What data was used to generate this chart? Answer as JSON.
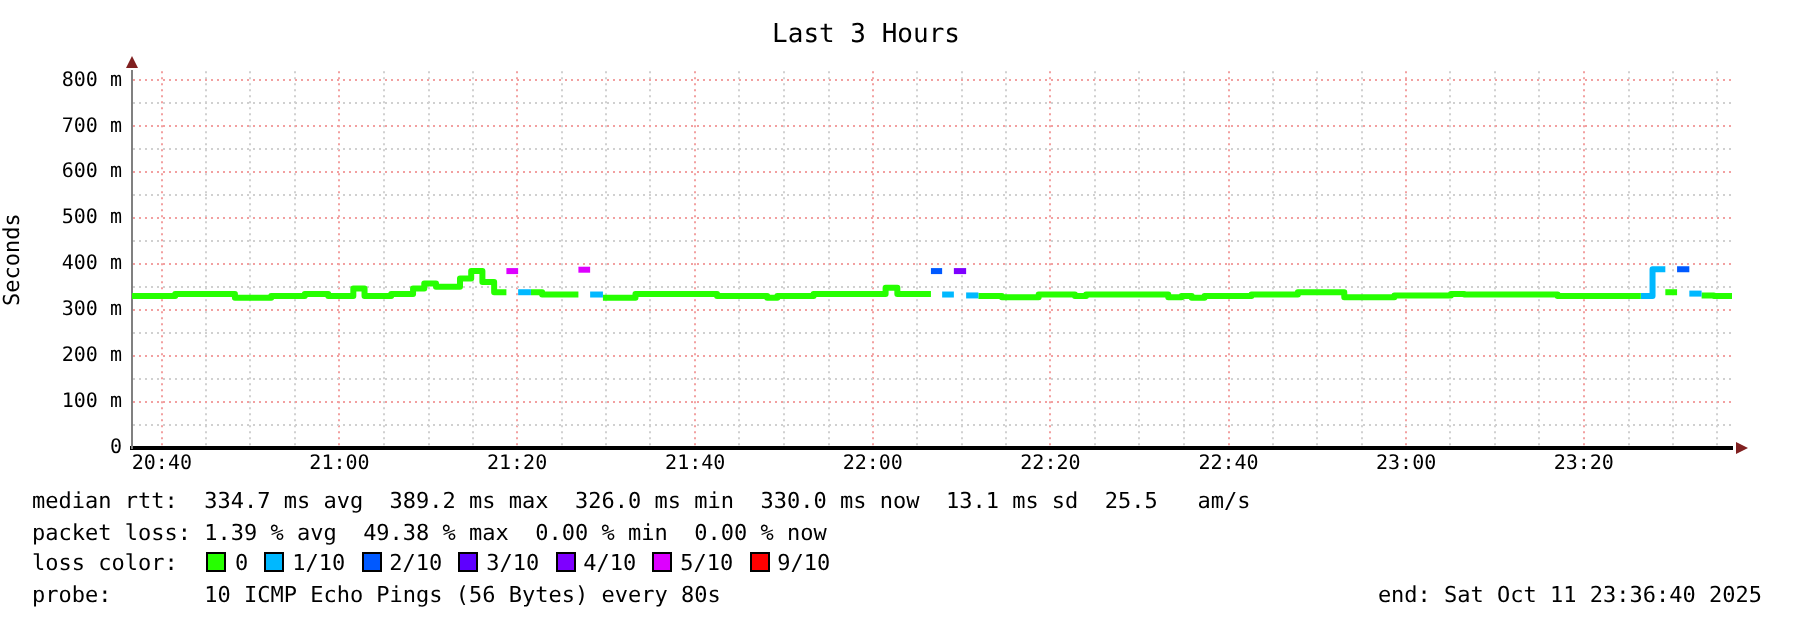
{
  "chart_data": {
    "type": "step",
    "title": "Last 3 Hours",
    "ylabel": "Seconds",
    "xlim": [
      20.611,
      23.611
    ],
    "ylim": [
      0,
      820
    ],
    "xticks": [
      {
        "value": 20.667,
        "label": "20:40"
      },
      {
        "value": 20.75,
        "label": null
      },
      {
        "value": 20.833,
        "label": null
      },
      {
        "value": 20.917,
        "label": null
      },
      {
        "value": 21,
        "label": "21:00"
      },
      {
        "value": 21.083,
        "label": null
      },
      {
        "value": 21.167,
        "label": null
      },
      {
        "value": 21.25,
        "label": null
      },
      {
        "value": 21.333,
        "label": "21:20"
      },
      {
        "value": 21.417,
        "label": null
      },
      {
        "value": 21.5,
        "label": null
      },
      {
        "value": 21.583,
        "label": null
      },
      {
        "value": 21.667,
        "label": "21:40"
      },
      {
        "value": 21.75,
        "label": null
      },
      {
        "value": 21.833,
        "label": null
      },
      {
        "value": 21.917,
        "label": null
      },
      {
        "value": 22,
        "label": "22:00"
      },
      {
        "value": 22.083,
        "label": null
      },
      {
        "value": 22.167,
        "label": null
      },
      {
        "value": 22.25,
        "label": null
      },
      {
        "value": 22.333,
        "label": "22:20"
      },
      {
        "value": 22.417,
        "label": null
      },
      {
        "value": 22.5,
        "label": null
      },
      {
        "value": 22.583,
        "label": null
      },
      {
        "value": 22.667,
        "label": "22:40"
      },
      {
        "value": 22.75,
        "label": null
      },
      {
        "value": 22.833,
        "label": null
      },
      {
        "value": 22.917,
        "label": null
      },
      {
        "value": 23,
        "label": "23:00"
      },
      {
        "value": 23.083,
        "label": null
      },
      {
        "value": 23.167,
        "label": null
      },
      {
        "value": 23.25,
        "label": null
      },
      {
        "value": 23.333,
        "label": "23:20"
      },
      {
        "value": 23.417,
        "label": null
      },
      {
        "value": 23.5,
        "label": null
      },
      {
        "value": 23.583,
        "label": null
      }
    ],
    "yticks": [
      0,
      {
        "value": 50,
        "label": null
      },
      {
        "value": 100,
        "label": "100 m"
      },
      {
        "value": 150,
        "label": null
      },
      {
        "value": 200,
        "label": "200 m"
      },
      {
        "value": 250,
        "label": null
      },
      {
        "value": 300,
        "label": "300 m"
      },
      {
        "value": 350,
        "label": null
      },
      {
        "value": 400,
        "label": "400 m"
      },
      {
        "value": 450,
        "label": null
      },
      {
        "value": 500,
        "label": "500 m"
      },
      {
        "value": 550,
        "label": null
      },
      {
        "value": 600,
        "label": "600 m"
      },
      {
        "value": 650,
        "label": null
      },
      {
        "value": 700,
        "label": "700 m"
      },
      {
        "value": 750,
        "label": null
      },
      {
        "value": 800,
        "label": "800 m"
      }
    ],
    "grid": true,
    "legend": "bottom",
    "legend_title": "loss color:",
    "marker": "none",
    "series": [
      {
        "name": "0",
        "color": "#26ff00",
        "x": [
          20.611,
          20.692,
          20.804,
          20.872,
          20.935,
          20.979,
          21.026,
          21.047,
          21.097,
          21.138,
          21.159,
          21.181,
          21.226,
          21.247,
          21.268,
          21.29,
          21.313
        ],
        "values": [
          331,
          335,
          327,
          331,
          335,
          331,
          347,
          331,
          335,
          347,
          358,
          351,
          369,
          385,
          361,
          339,
          339
        ]
      },
      {
        "name": "1/10",
        "color": "#00b8ff",
        "x": [
          21.335,
          21.359
        ],
        "values": [
          339,
          339
        ]
      },
      {
        "name": "2/10",
        "color": "#0059ff",
        "x": [
          22.109,
          22.13
        ],
        "values": [
          385,
          385
        ]
      },
      {
        "name": "3/10",
        "color": "#5e00ff"
      },
      {
        "name": "4/10",
        "color": "#7e00ff",
        "x": [
          22.152,
          22.175
        ],
        "values": [
          385,
          385
        ]
      },
      {
        "name": "5/10",
        "color": "#dd00ff",
        "x": [
          21.313,
          21.335
        ],
        "values": [
          385,
          385
        ]
      },
      {
        "name": "9/10",
        "color": "#ff0000"
      },
      {
        "color": "#26ff00",
        "x": [
          21.359,
          21.38,
          21.448
        ],
        "values": [
          339,
          334,
          334
        ]
      },
      {
        "color": "#dd00ff",
        "x": [
          21.448,
          21.47
        ],
        "values": [
          388,
          388
        ]
      },
      {
        "color": "#00b8ff",
        "x": [
          21.47,
          21.494
        ],
        "values": [
          334,
          334
        ]
      },
      {
        "color": "#26ff00",
        "x": [
          21.494,
          21.555,
          21.708,
          21.802,
          21.821,
          21.889,
          22.024,
          22.046,
          22.109
        ],
        "values": [
          327,
          335,
          331,
          327,
          331,
          335,
          349,
          335,
          335
        ]
      },
      {
        "color": "#00b8ff",
        "x": [
          22.13,
          22.152
        ],
        "values": [
          334,
          334
        ]
      },
      {
        "color": "#00b8ff",
        "x": [
          22.175,
          22.198
        ],
        "values": [
          332,
          332
        ]
      },
      {
        "color": "#26ff00",
        "x": [
          22.198,
          22.242,
          22.311,
          22.379,
          22.4,
          22.554,
          22.579,
          22.598,
          22.622,
          22.71,
          22.797,
          22.884,
          22.978,
          23.084,
          23.109,
          23.284,
          23.44
        ],
        "values": [
          331,
          328,
          334,
          331,
          334,
          328,
          331,
          327,
          331,
          334,
          339,
          328,
          332,
          335,
          334,
          331,
          331
        ]
      },
      {
        "color": "#00b8ff",
        "x": [
          23.44,
          23.462,
          23.486
        ],
        "values": [
          331,
          389,
          389
        ]
      },
      {
        "color": "#26ff00",
        "x": [
          23.486,
          23.508
        ],
        "values": [
          339,
          339
        ]
      },
      {
        "color": "#0059ff",
        "x": [
          23.508,
          23.531
        ],
        "values": [
          389,
          389
        ]
      },
      {
        "color": "#00b8ff",
        "x": [
          23.531,
          23.554
        ],
        "values": [
          336,
          336
        ]
      },
      {
        "color": "#26ff00",
        "x": [
          23.554,
          23.577,
          23.611
        ],
        "values": [
          332,
          331,
          331
        ]
      }
    ],
    "annotations": [
      "median rtt:  334.7 ms avg  389.2 ms max  326.0 ms min  330.0 ms now  13.1 ms sd  25.5   am/s",
      "packet loss: 1.39 % avg  49.38 % max  0.00 % min  0.00 % now",
      "probe:       10 ICMP Echo Pings (56 Bytes) every 80s",
      "end: Sat Oct 11 23:36:40 2025"
    ]
  }
}
